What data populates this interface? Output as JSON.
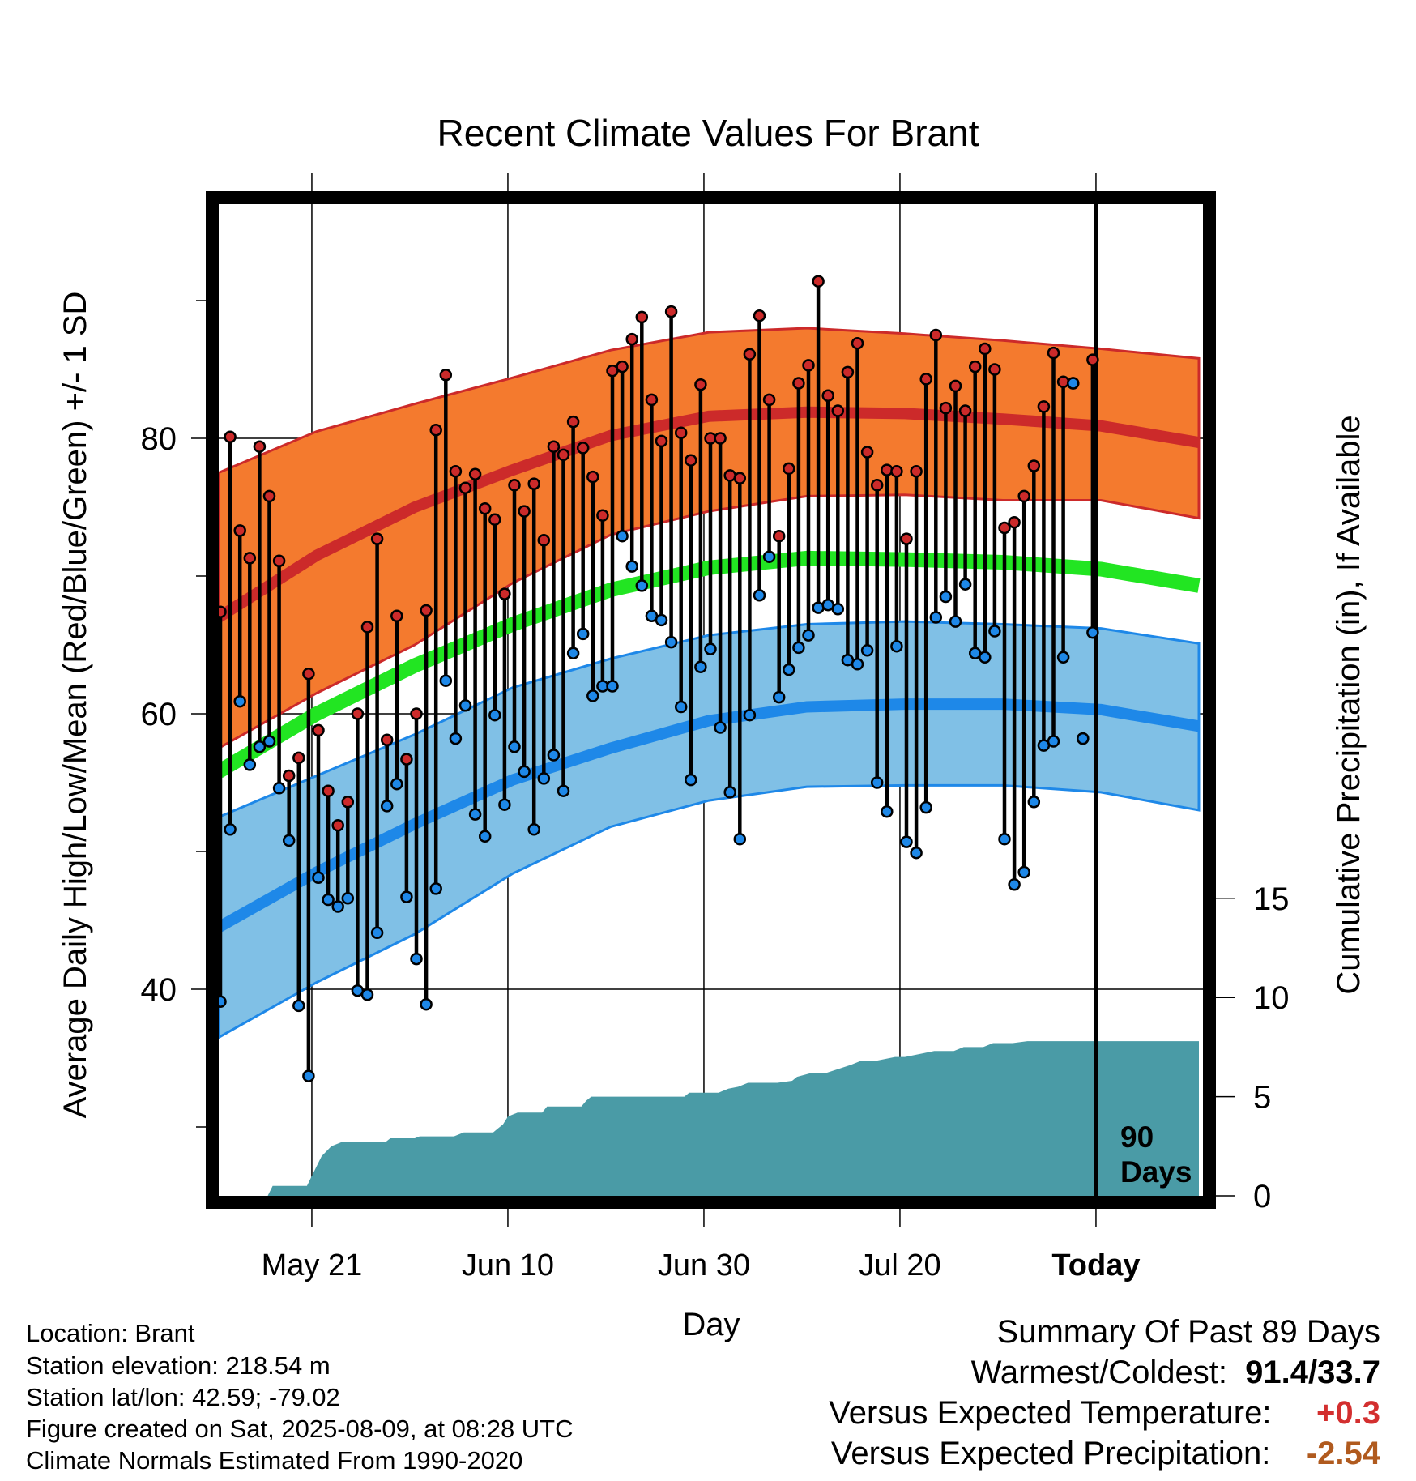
{
  "chart_data": {
    "type": "line",
    "title": "Recent Climate Values For Brant",
    "xlabel": "Day",
    "ylabel": "Average Daily High/Low/Mean (Red/Blue/Green) +/- 1 SD",
    "y2label": "Cumulative Precipitation (in), If Available",
    "x_tick_labels": [
      "May 21",
      "Jun 10",
      "Jun 30",
      "Jul 20",
      "Today"
    ],
    "y_tick_labels": [
      "40",
      "60",
      "80"
    ],
    "y2_tick_labels": [
      "0",
      "5",
      "10",
      "15"
    ],
    "ylim": [
      25,
      97
    ],
    "y2lim": [
      0,
      50
    ],
    "today_label": "90 Days",
    "colors": {
      "high_band": "#f47a2e",
      "high_line": "#cc2a2a",
      "low_band": "#80c0e6",
      "low_line": "#1e88e8",
      "mean_line": "#22e522",
      "precip": "#4a9ba6",
      "high_marker": "#cc2a2a",
      "low_marker": "#1e88e8"
    },
    "normals": {
      "days": [
        0,
        10,
        20,
        30,
        40,
        50,
        60,
        70,
        80,
        90,
        100
      ],
      "high_mean": [
        67.0,
        71.5,
        75.0,
        77.7,
        80.2,
        81.6,
        81.9,
        81.8,
        81.4,
        80.9,
        79.7
      ],
      "high_upper": [
        77.5,
        80.5,
        82.5,
        84.4,
        86.4,
        87.7,
        88.0,
        87.6,
        87.1,
        86.5,
        85.8
      ],
      "high_lower": [
        57.5,
        61.5,
        65.0,
        69.5,
        73.0,
        74.7,
        75.8,
        75.9,
        75.5,
        75.5,
        74.2
      ],
      "low_mean": [
        44.5,
        48.5,
        52.0,
        55.2,
        57.5,
        59.5,
        60.5,
        60.7,
        60.7,
        60.3,
        59.1
      ],
      "low_upper": [
        52.5,
        55.5,
        58.5,
        61.9,
        64.0,
        65.7,
        66.5,
        66.7,
        66.5,
        66.2,
        65.1
      ],
      "low_lower": [
        36.5,
        40.5,
        44.0,
        48.4,
        51.8,
        53.7,
        54.7,
        54.8,
        54.8,
        54.3,
        53.0
      ],
      "mean_mean": [
        55.8,
        60.0,
        63.5,
        66.5,
        69.0,
        70.6,
        71.3,
        71.2,
        71.0,
        70.5,
        69.3
      ]
    },
    "daily": {
      "day_offset": [
        0,
        1,
        2,
        3,
        4,
        5,
        6,
        7,
        8,
        9,
        10,
        11,
        12,
        13,
        14,
        15,
        16,
        17,
        18,
        19,
        20,
        21,
        22,
        23,
        24,
        25,
        26,
        27,
        28,
        29,
        30,
        31,
        32,
        33,
        34,
        35,
        36,
        37,
        38,
        39,
        40,
        41,
        42,
        43,
        44,
        45,
        46,
        47,
        48,
        49,
        50,
        51,
        52,
        53,
        54,
        55,
        56,
        57,
        58,
        59,
        60,
        61,
        62,
        63,
        64,
        65,
        66,
        67,
        68,
        69,
        70,
        71,
        72,
        73,
        74,
        75,
        76,
        77,
        78,
        79,
        80,
        81,
        82,
        83,
        84,
        85,
        86,
        87,
        88,
        89
      ],
      "high": [
        67.4,
        80.1,
        73.3,
        71.3,
        79.4,
        75.8,
        71.1,
        55.5,
        56.8,
        62.9,
        58.8,
        54.4,
        51.9,
        53.6,
        60.0,
        66.3,
        72.7,
        58.1,
        67.1,
        56.7,
        60.0,
        67.5,
        80.6,
        84.6,
        77.6,
        76.4,
        77.4,
        74.9,
        74.1,
        68.7,
        76.6,
        74.7,
        76.7,
        72.6,
        79.4,
        78.8,
        81.2,
        79.3,
        77.2,
        74.4,
        84.9,
        85.2,
        87.2,
        88.8,
        82.8,
        79.8,
        89.2,
        80.4,
        78.4,
        83.9,
        80.0,
        80.0,
        77.3,
        77.1,
        86.1,
        88.9,
        82.8,
        72.9,
        77.8,
        84.0,
        85.3,
        91.4,
        83.1,
        82.0,
        84.8,
        86.9,
        79.0,
        76.6,
        77.7,
        77.6,
        72.7,
        77.6,
        84.3,
        87.5,
        82.2,
        83.8,
        82.0,
        85.2,
        86.5,
        85.0,
        73.5,
        73.9,
        75.8,
        78.0,
        82.3,
        86.2,
        84.1,
        84.0,
        58.2,
        85.7
      ],
      "low": [
        39.1,
        51.6,
        60.9,
        56.3,
        57.6,
        58.0,
        54.6,
        50.8,
        38.8,
        33.7,
        48.1,
        46.5,
        46.0,
        46.6,
        39.9,
        39.6,
        44.1,
        53.3,
        54.9,
        46.7,
        42.2,
        38.9,
        47.3,
        62.4,
        58.2,
        60.6,
        52.7,
        51.1,
        59.9,
        53.4,
        57.6,
        55.8,
        51.6,
        55.3,
        57.0,
        54.4,
        64.4,
        65.8,
        61.3,
        62.0,
        62.0,
        72.9,
        70.7,
        69.3,
        67.1,
        66.8,
        65.2,
        60.5,
        55.2,
        63.4,
        64.7,
        59.0,
        54.3,
        50.9,
        59.9,
        68.6,
        71.4,
        61.2,
        63.2,
        64.8,
        65.7,
        67.7,
        67.9,
        67.6,
        63.9,
        63.6,
        64.6,
        55.0,
        52.9,
        64.9,
        50.7,
        49.9,
        53.2,
        67.0,
        68.5,
        66.7,
        69.4,
        64.4,
        64.1,
        66.0,
        50.9,
        47.6,
        48.5,
        53.6,
        57.7,
        58.0,
        64.1,
        84.0,
        58.2,
        65.9
      ]
    },
    "precip": {
      "day_offset": [
        0,
        5,
        5.5,
        9,
        9.5,
        10.5,
        11.5,
        12.5,
        17,
        17.5,
        20,
        20.5,
        24,
        25,
        28,
        28.5,
        29,
        29.5,
        30.5,
        33,
        33.5,
        37,
        37.5,
        38,
        39,
        46,
        47.5,
        48,
        51,
        52,
        53,
        54,
        57,
        58.5,
        59,
        60.5,
        62,
        64.5,
        65.5,
        67,
        69,
        70,
        72,
        73,
        75,
        76,
        78,
        79,
        81,
        82.5,
        83,
        100
      ],
      "values": [
        0,
        0,
        0.5,
        0.5,
        1.0,
        2.0,
        2.5,
        2.7,
        2.7,
        2.9,
        2.9,
        3.0,
        3.0,
        3.2,
        3.2,
        3.4,
        3.6,
        4.0,
        4.2,
        4.2,
        4.5,
        4.5,
        4.8,
        5.0,
        5.0,
        5.0,
        5.0,
        5.2,
        5.2,
        5.4,
        5.5,
        5.7,
        5.7,
        5.8,
        6.0,
        6.2,
        6.2,
        6.6,
        6.8,
        6.8,
        7.0,
        7.0,
        7.2,
        7.3,
        7.3,
        7.5,
        7.5,
        7.7,
        7.7,
        7.8,
        7.8,
        7.8
      ]
    }
  },
  "location": {
    "line1": "Location: Brant",
    "line2": "Station elevation: 218.54 m",
    "line3": "Station lat/lon: 42.59; -79.02",
    "line4": "Figure created on Sat, 2025-08-09, at 08:28 UTC",
    "line5": "Climate Normals Estimated From 1990-2020"
  },
  "summary": {
    "title": "Summary Of Past 89 Days",
    "warmest_label": "Warmest/Coldest:",
    "warmest_value": "91.4/33.7",
    "temp_label": "Versus Expected Temperature:",
    "temp_value": "+0.3",
    "temp_color": "#d32f2f",
    "precip_label": "Versus Expected Precipitation:",
    "precip_value": "-2.54",
    "precip_color": "#b05a1e"
  }
}
